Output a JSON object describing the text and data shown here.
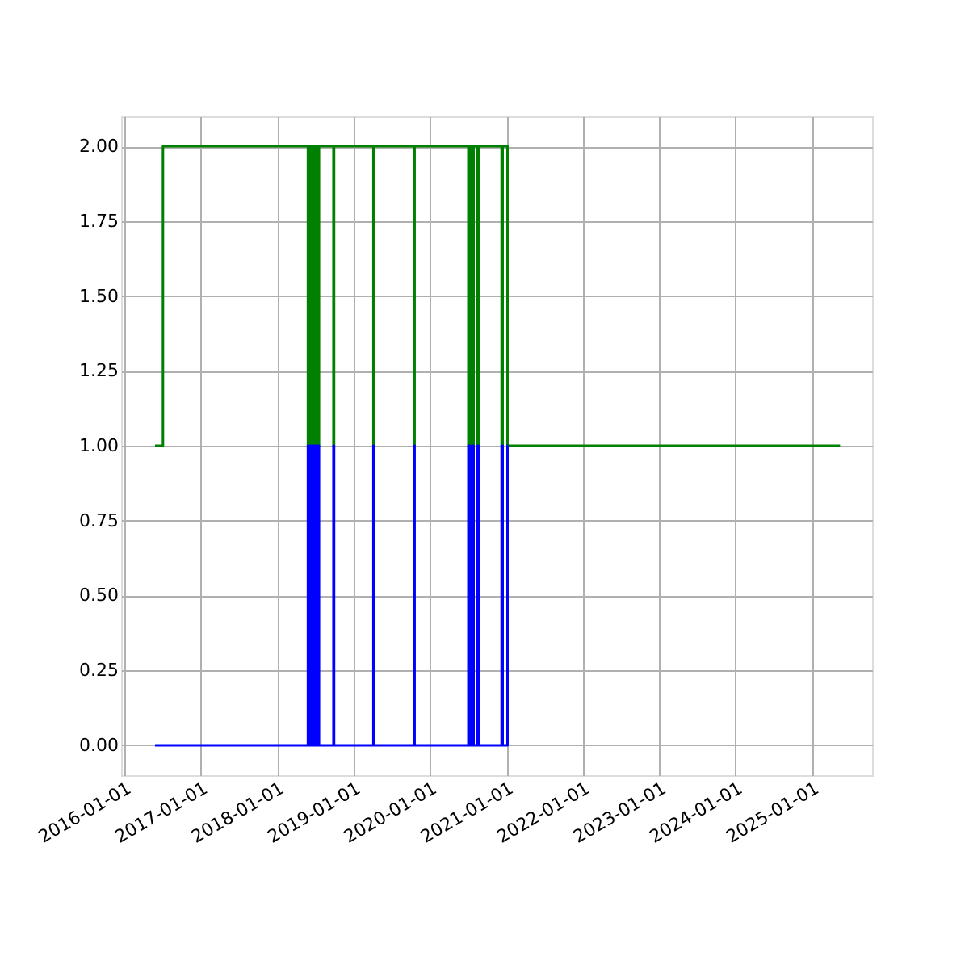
{
  "chart_data": {
    "type": "step",
    "xlim": [
      "2015-12-17",
      "2025-10-15"
    ],
    "xticks": [
      "2016-01-01",
      "2017-01-01",
      "2018-01-01",
      "2019-01-01",
      "2020-01-01",
      "2021-01-01",
      "2022-01-01",
      "2023-01-01",
      "2024-01-01",
      "2025-01-01"
    ],
    "ylim": [
      -0.1,
      2.1
    ],
    "yticks": [
      {
        "value": 0,
        "label": "0.00"
      },
      {
        "value": 0.25,
        "label": "0.25"
      },
      {
        "value": 0.5,
        "label": "0.50"
      },
      {
        "value": 0.75,
        "label": "0.75"
      },
      {
        "value": 1,
        "label": "1.00"
      },
      {
        "value": 1.25,
        "label": "1.25"
      },
      {
        "value": 1.5,
        "label": "1.50"
      },
      {
        "value": 1.75,
        "label": "1.75"
      },
      {
        "value": 2,
        "label": "2.00"
      }
    ],
    "grid": true,
    "line_style": "solid",
    "marker": "none",
    "series": [
      {
        "color": "#008000",
        "x": [
          "2016-05-27",
          "2016-07-04",
          "2018-05-28",
          "2018-06-01",
          "2018-06-05",
          "2018-06-10",
          "2018-06-15",
          "2018-06-20",
          "2018-06-25",
          "2018-06-30",
          "2018-07-05",
          "2018-07-10",
          "2018-07-15",
          "2018-07-20",
          "2018-09-27",
          "2018-09-30",
          "2019-04-06",
          "2019-04-09",
          "2019-10-17",
          "2019-10-20",
          "2020-07-03",
          "2020-07-10",
          "2020-07-20",
          "2020-07-28",
          "2020-08-15",
          "2020-08-22",
          "2020-12-09",
          "2020-12-14",
          "2021-01-06",
          "2025-05-15"
        ],
        "values": [
          1,
          2,
          1,
          2,
          1,
          2,
          1,
          2,
          1,
          2,
          1,
          2,
          1,
          2,
          1,
          2,
          1,
          2,
          1,
          2,
          1,
          2,
          1,
          2,
          1,
          2,
          1,
          2,
          1,
          1
        ]
      },
      {
        "color": "#0000ff",
        "x": [
          "2016-05-27",
          "2018-05-28",
          "2018-06-01",
          "2018-06-05",
          "2018-06-10",
          "2018-06-15",
          "2018-06-20",
          "2018-06-25",
          "2018-06-30",
          "2018-07-05",
          "2018-07-10",
          "2018-07-15",
          "2018-07-20",
          "2018-09-27",
          "2018-09-30",
          "2019-04-06",
          "2019-04-09",
          "2019-10-17",
          "2019-10-20",
          "2020-07-03",
          "2020-07-10",
          "2020-07-20",
          "2020-07-28",
          "2020-08-15",
          "2020-08-22",
          "2020-12-09",
          "2020-12-14",
          "2021-01-06",
          "2021-01-10"
        ],
        "values": [
          0,
          1,
          0,
          1,
          0,
          1,
          0,
          1,
          0,
          1,
          0,
          1,
          0,
          1,
          0,
          1,
          0,
          1,
          0,
          1,
          0,
          1,
          0,
          1,
          0,
          1,
          0,
          1,
          1
        ]
      }
    ]
  }
}
